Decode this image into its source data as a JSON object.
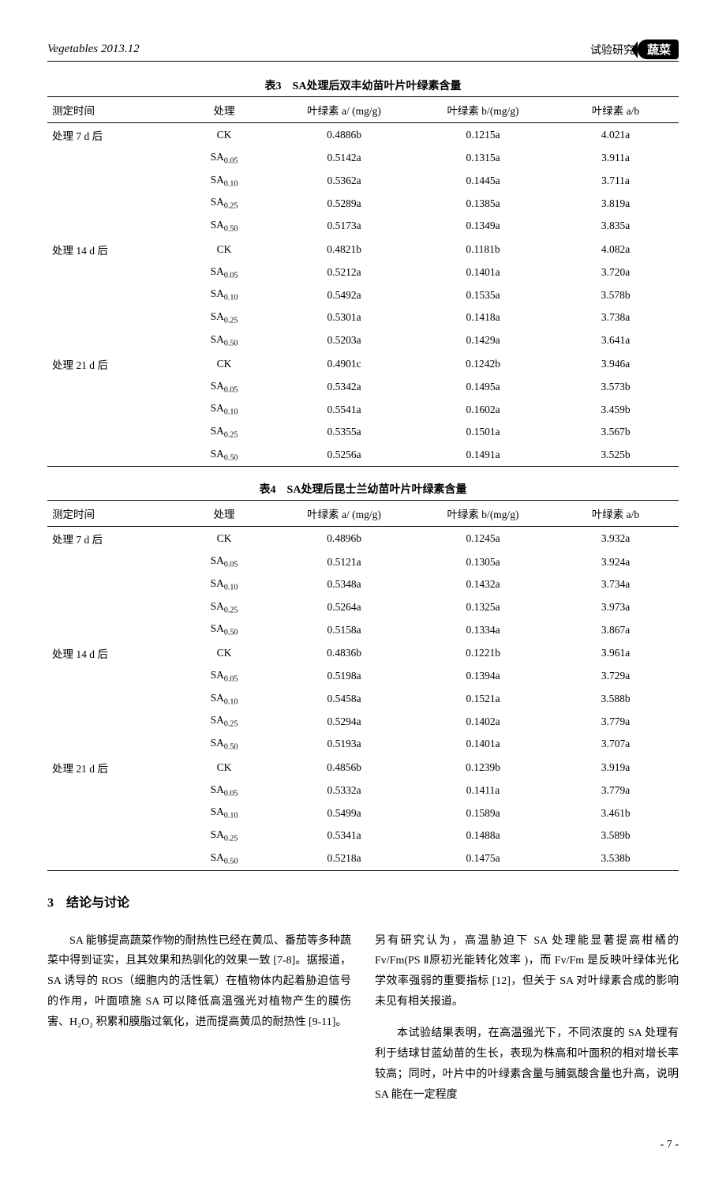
{
  "header": {
    "journal": "Vegetables 2013.12",
    "section_label": "试验研究",
    "badge": "蔬菜"
  },
  "table3": {
    "title": "表3　SA处理后双丰幼苗叶片叶绿素含量",
    "columns": [
      "测定时间",
      "处理",
      "叶绿素 a/ (mg/g)",
      "叶绿素 b/(mg/g)",
      "叶绿素 a/b"
    ],
    "groups": [
      {
        "time": "处理 7 d 后",
        "rows": [
          [
            "CK",
            "0.4886b",
            "0.1215a",
            "4.021a"
          ],
          [
            "SA|0.05",
            "0.5142a",
            "0.1315a",
            "3.911a"
          ],
          [
            "SA|0.10",
            "0.5362a",
            "0.1445a",
            "3.711a"
          ],
          [
            "SA|0.25",
            "0.5289a",
            "0.1385a",
            "3.819a"
          ],
          [
            "SA|0.50",
            "0.5173a",
            "0.1349a",
            "3.835a"
          ]
        ]
      },
      {
        "time": "处理 14 d 后",
        "rows": [
          [
            "CK",
            "0.4821b",
            "0.1181b",
            "4.082a"
          ],
          [
            "SA|0.05",
            "0.5212a",
            "0.1401a",
            "3.720a"
          ],
          [
            "SA|0.10",
            "0.5492a",
            "0.1535a",
            "3.578b"
          ],
          [
            "SA|0.25",
            "0.5301a",
            "0.1418a",
            "3.738a"
          ],
          [
            "SA|0.50",
            "0.5203a",
            "0.1429a",
            "3.641a"
          ]
        ]
      },
      {
        "time": "处理 21 d 后",
        "rows": [
          [
            "CK",
            "0.4901c",
            "0.1242b",
            "3.946a"
          ],
          [
            "SA|0.05",
            "0.5342a",
            "0.1495a",
            "3.573b"
          ],
          [
            "SA|0.10",
            "0.5541a",
            "0.1602a",
            "3.459b"
          ],
          [
            "SA|0.25",
            "0.5355a",
            "0.1501a",
            "3.567b"
          ],
          [
            "SA|0.50",
            "0.5256a",
            "0.1491a",
            "3.525b"
          ]
        ]
      }
    ]
  },
  "table4": {
    "title": "表4　SA处理后昆士兰幼苗叶片叶绿素含量",
    "columns": [
      "测定时间",
      "处理",
      "叶绿素 a/ (mg/g)",
      "叶绿素 b/(mg/g)",
      "叶绿素 a/b"
    ],
    "groups": [
      {
        "time": "处理 7 d 后",
        "rows": [
          [
            "CK",
            "0.4896b",
            "0.1245a",
            "3.932a"
          ],
          [
            "SA|0.05",
            "0.5121a",
            "0.1305a",
            "3.924a"
          ],
          [
            "SA|0.10",
            "0.5348a",
            "0.1432a",
            "3.734a"
          ],
          [
            "SA|0.25",
            "0.5264a",
            "0.1325a",
            "3.973a"
          ],
          [
            "SA|0.50",
            "0.5158a",
            "0.1334a",
            "3.867a"
          ]
        ]
      },
      {
        "time": "处理 14 d 后",
        "rows": [
          [
            "CK",
            "0.4836b",
            "0.1221b",
            "3.961a"
          ],
          [
            "SA|0.05",
            "0.5198a",
            "0.1394a",
            "3.729a"
          ],
          [
            "SA|0.10",
            "0.5458a",
            "0.1521a",
            "3.588b"
          ],
          [
            "SA|0.25",
            "0.5294a",
            "0.1402a",
            "3.779a"
          ],
          [
            "SA|0.50",
            "0.5193a",
            "0.1401a",
            "3.707a"
          ]
        ]
      },
      {
        "time": "处理 21 d 后",
        "rows": [
          [
            "CK",
            "0.4856b",
            "0.1239b",
            "3.919a"
          ],
          [
            "SA|0.05",
            "0.5332a",
            "0.1411a",
            "3.779a"
          ],
          [
            "SA|0.10",
            "0.5499a",
            "0.1589a",
            "3.461b"
          ],
          [
            "SA|0.25",
            "0.5341a",
            "0.1488a",
            "3.589b"
          ],
          [
            "SA|0.50",
            "0.5218a",
            "0.1475a",
            "3.538b"
          ]
        ]
      }
    ]
  },
  "discussion": {
    "heading": "3　结论与讨论",
    "left_p1": "SA 能够提高蔬菜作物的耐热性已经在黄瓜、番茄等多种蔬菜中得到证实，且其效果和热驯化的效果一致 [7-8]。据报道，SA 诱导的 ROS（细胞内的活性氧）在植物体内起着胁迫信号的作用，叶面喷施 SA 可以降低高温强光对植物产生的膜伤害、H₂O₂ 积累和膜脂过氧化，进而提高黄瓜的耐热性 [9-11]。",
    "right_p1": "另有研究认为，高温胁迫下 SA 处理能显著提高柑橘的 Fv/Fm(PS Ⅱ原初光能转化效率 )，而 Fv/Fm 是反映叶绿体光化学效率强弱的重要指标 [12]，但关于 SA 对叶绿素合成的影响未见有相关报道。",
    "right_p2": "本试验结果表明，在高温强光下，不同浓度的 SA 处理有利于结球甘蓝幼苗的生长，表现为株高和叶面积的相对增长率较高；同时，叶片中的叶绿素含量与脯氨酸含量也升高，说明 SA 能在一定程度"
  },
  "page_number": "- 7 -"
}
